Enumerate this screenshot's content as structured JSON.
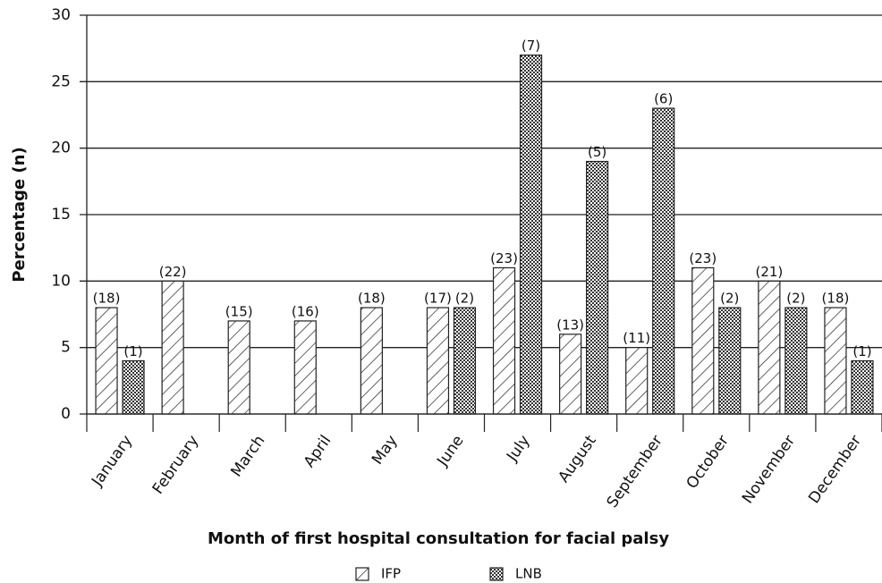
{
  "chart_data": {
    "type": "bar",
    "x_label": "Month of first hospital consultation for facial palsy",
    "y_label": "Percentage (n)",
    "categories": [
      "January",
      "February",
      "March",
      "April",
      "May",
      "June",
      "July",
      "August",
      "September",
      "October",
      "November",
      "December"
    ],
    "series": [
      {
        "name": "IFP",
        "color": "#222222",
        "pattern": "hatch",
        "values": [
          8,
          10,
          7,
          7,
          8,
          8,
          11,
          6,
          5,
          11,
          10,
          8
        ],
        "count_labels": [
          "(18)",
          "(22)",
          "(15)",
          "(16)",
          "(18)",
          "(17)",
          "(23)",
          "(13)",
          "(11)",
          "(23)",
          "(21)",
          "(18)"
        ]
      },
      {
        "name": "LNB",
        "color": "#222222",
        "pattern": "check",
        "values": [
          4,
          null,
          null,
          null,
          null,
          8,
          27,
          19,
          23,
          8,
          8,
          4
        ],
        "count_labels": [
          "(1)",
          null,
          null,
          null,
          null,
          "(2)",
          "(7)",
          "(5)",
          "(6)",
          "(2)",
          "(2)",
          "(1)"
        ]
      }
    ],
    "ylim": [
      0,
      30
    ],
    "yticks": [
      0,
      5,
      10,
      15,
      20,
      25,
      30
    ],
    "grid": true,
    "legend": "bottom"
  }
}
